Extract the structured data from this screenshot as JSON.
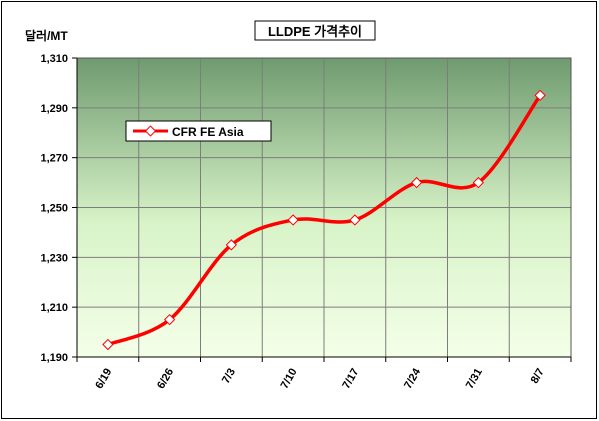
{
  "chart_data": {
    "type": "line",
    "title": "LLDPE 가격추이",
    "ylabel": "달러/MT",
    "xlabel": "",
    "categories": [
      "6/19",
      "6/26",
      "7/3",
      "7/10",
      "7/17",
      "7/24",
      "7/31",
      "8/7"
    ],
    "series": [
      {
        "name": "CFR FE Asia",
        "values": [
          1195,
          1205,
          1235,
          1245,
          1245,
          1260,
          1260,
          1295
        ]
      }
    ],
    "ylim": [
      1190,
      1310
    ],
    "yticks": [
      1190,
      1210,
      1230,
      1250,
      1270,
      1290,
      1310
    ],
    "ytick_labels": [
      "1,190",
      "1,210",
      "1,230",
      "1,250",
      "1,270",
      "1,290",
      "1,310"
    ],
    "grid": true,
    "legend_position": "upper-left",
    "colors": {
      "line": "#ff0000",
      "marker_fill": "#ffffff",
      "plot_bg_top": "#6f9a6f",
      "plot_bg_mid": "#d8f3c8",
      "plot_bg_bottom": "#f4ffe8",
      "grid": "#7d7d7d",
      "border": "#000000"
    }
  }
}
